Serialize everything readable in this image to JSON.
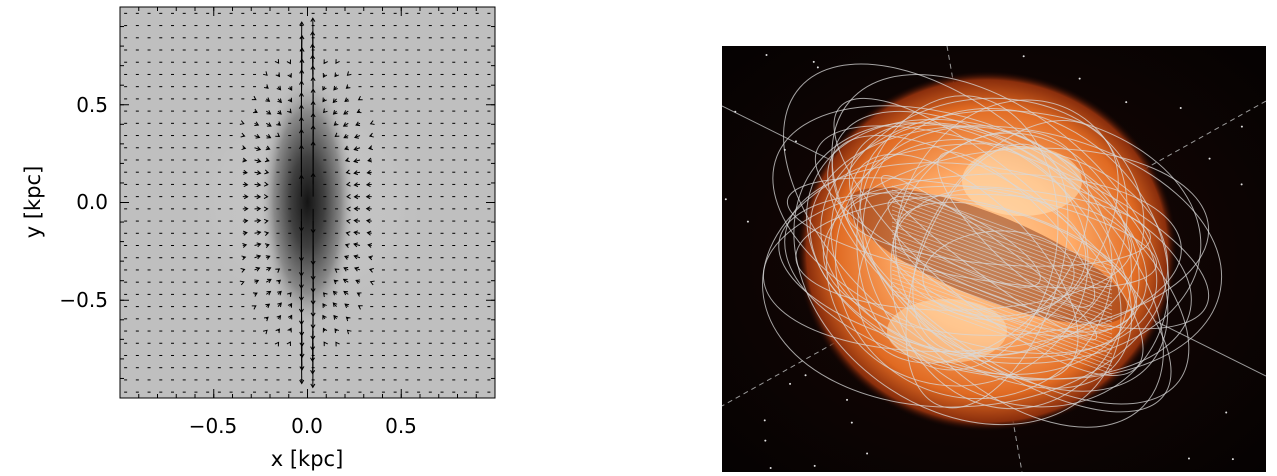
{
  "left_panel": {
    "xlabel": "x [kpc]",
    "ylabel": "y [kpc]",
    "xticks": [
      "−0.5",
      "0.0",
      "0.5"
    ],
    "yticks": [
      "0.5",
      "0.0",
      "−0.5"
    ],
    "xlim": [
      -1.0,
      1.0
    ],
    "ylim": [
      -1.0,
      1.0
    ]
  },
  "chart_data": {
    "type": "heatmap",
    "title": "",
    "xlabel": "x [kpc]",
    "ylabel": "y [kpc]",
    "xlim": [
      -1.0,
      1.0
    ],
    "ylim": [
      -1.0,
      1.0
    ],
    "x_ticks": [
      -0.5,
      0.0,
      0.5
    ],
    "y_ticks": [
      -0.5,
      0.0,
      0.5
    ],
    "colormap": "grayscale",
    "features": "dark elongated vertical concentration centred at (0,0), extending to about |y|=0.6 kpc, with a velocity vector field; strongest vectors near x=0 pointing outward along y"
  },
  "right_panel": {
    "description_visible": false
  },
  "colors": {
    "background": "#ffffff",
    "panel_fill": "#bfbfbf",
    "glow_core": "#ffb070",
    "glow_edge": "#b0401a",
    "field_lines": "#d8d8d8",
    "sky": "#080303"
  }
}
